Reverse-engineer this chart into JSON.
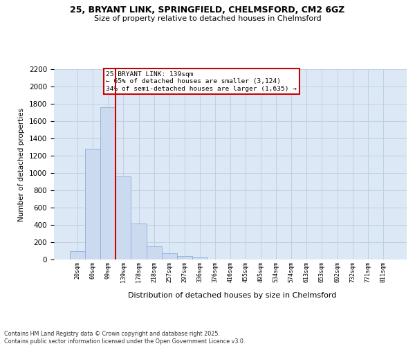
{
  "title_line1": "25, BRYANT LINK, SPRINGFIELD, CHELMSFORD, CM2 6GZ",
  "title_line2": "Size of property relative to detached houses in Chelmsford",
  "xlabel": "Distribution of detached houses by size in Chelmsford",
  "ylabel": "Number of detached properties",
  "bar_labels": [
    "20sqm",
    "60sqm",
    "99sqm",
    "139sqm",
    "178sqm",
    "218sqm",
    "257sqm",
    "297sqm",
    "336sqm",
    "376sqm",
    "416sqm",
    "455sqm",
    "495sqm",
    "534sqm",
    "574sqm",
    "613sqm",
    "653sqm",
    "692sqm",
    "732sqm",
    "771sqm",
    "811sqm"
  ],
  "bar_values": [
    100,
    1280,
    1760,
    960,
    420,
    150,
    75,
    40,
    25,
    0,
    0,
    0,
    0,
    0,
    0,
    0,
    0,
    0,
    0,
    0,
    0
  ],
  "bar_color": "#ccdaf0",
  "bar_edge_color": "#8ab0d8",
  "red_line_index": 3,
  "annotation_line1": "25 BRYANT LINK: 139sqm",
  "annotation_line2": "← 65% of detached houses are smaller (3,124)",
  "annotation_line3": "34% of semi-detached houses are larger (1,635) →",
  "annotation_box_facecolor": "#ffffff",
  "annotation_box_edgecolor": "#cc0000",
  "red_line_color": "#cc0000",
  "grid_color": "#c0d0e0",
  "plot_bg_color": "#dce8f5",
  "ylim_max": 2200,
  "footnote_line1": "Contains HM Land Registry data © Crown copyright and database right 2025.",
  "footnote_line2": "Contains public sector information licensed under the Open Government Licence v3.0."
}
